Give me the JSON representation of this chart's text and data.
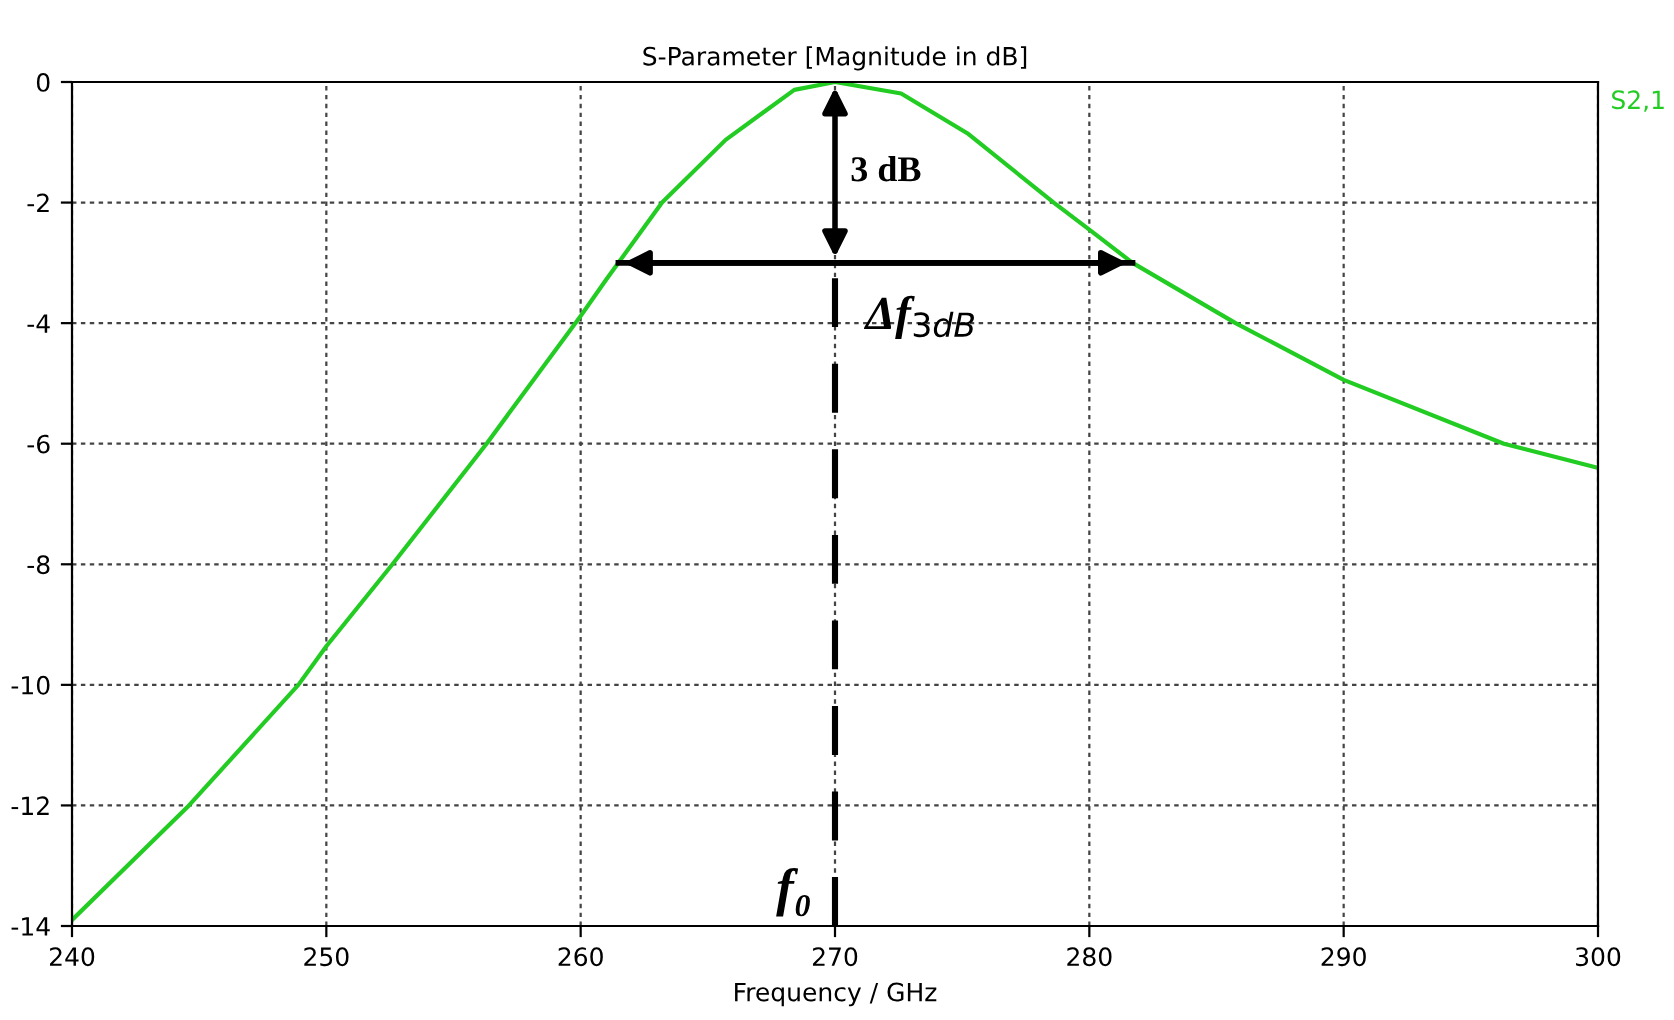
{
  "chart_data": {
    "type": "line",
    "title": "S-Parameter [Magnitude in dB]",
    "xlabel": "Frequency / GHz",
    "series": [
      {
        "name": "S2,1",
        "color": "#22cc22",
        "x": [
          240,
          244.6,
          248.9,
          250,
          252.6,
          256.3,
          260,
          261,
          263.2,
          265.7,
          268.4,
          270,
          272.6,
          275.2,
          278.6,
          280,
          281.7,
          285.75,
          290,
          296.3,
          300
        ],
        "values": [
          -13.9,
          -12.0,
          -10.0,
          -9.36,
          -8.0,
          -6.0,
          -3.88,
          -3.28,
          -2.0,
          -0.96,
          -0.13,
          0,
          -0.19,
          -0.85,
          -2.0,
          -2.45,
          -3.0,
          -4.0,
          -4.94,
          -6.0,
          -6.4
        ]
      }
    ],
    "xlim": [
      240,
      300
    ],
    "ylim": [
      -14,
      0
    ],
    "xticks": [
      240,
      250,
      260,
      270,
      280,
      290,
      300
    ],
    "yticks": [
      0,
      -2,
      -4,
      -6,
      -8,
      -10,
      -12,
      -14
    ],
    "grid": true,
    "legend": "top right",
    "line_style": "solid",
    "marker": "none",
    "ref_lines": [
      {
        "axis": "x",
        "value": 270,
        "color": "#000000",
        "line_style": "dashed"
      },
      {
        "axis": "y",
        "value": -3,
        "color": "#000000"
      }
    ],
    "annotations": [
      "3 dB",
      "Δf$_{3dB}$",
      "f₀"
    ]
  }
}
